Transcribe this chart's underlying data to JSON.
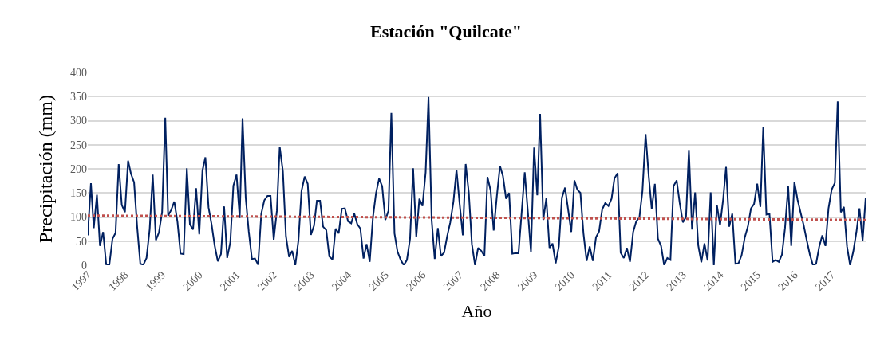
{
  "chart_data": {
    "type": "line",
    "title": "Estación \"Quilcate\"",
    "xlabel": "Año",
    "ylabel": "Precipitación (mm)",
    "xlim": [
      "1997-01",
      "2017-12"
    ],
    "xticks": [
      "1997",
      "1998",
      "1999",
      "2000",
      "2001",
      "2002",
      "2003",
      "2004",
      "2005",
      "2006",
      "2007",
      "2008",
      "2009",
      "2010",
      "2011",
      "2012",
      "2013",
      "2014",
      "2015",
      "2016",
      "2017"
    ],
    "ylim": [
      0,
      400
    ],
    "yticks": [
      0,
      50,
      100,
      150,
      200,
      250,
      300,
      350,
      400
    ],
    "grid": "y",
    "series": [
      {
        "color": "#002060",
        "line_style": "solid",
        "x": [
          "1997-01",
          "1997-02",
          "1997-03",
          "1997-04",
          "1997-05",
          "1997-06",
          "1997-07",
          "1997-08",
          "1997-09",
          "1997-10",
          "1997-11",
          "1997-12",
          "1998-01",
          "1998-02",
          "1998-03",
          "1998-04",
          "1998-05",
          "1998-06",
          "1998-07",
          "1998-08",
          "1998-09",
          "1998-10",
          "1998-11",
          "1998-12",
          "1999-01",
          "1999-02",
          "1999-03",
          "1999-04",
          "1999-05",
          "1999-06",
          "1999-07",
          "1999-08",
          "1999-09",
          "1999-10",
          "1999-11",
          "1999-12",
          "2000-01",
          "2000-02",
          "2000-03",
          "2000-04",
          "2000-05",
          "2000-06",
          "2000-07",
          "2000-08",
          "2000-09",
          "2000-10",
          "2000-11",
          "2000-12",
          "2001-01",
          "2001-02",
          "2001-03",
          "2001-04",
          "2001-05",
          "2001-06",
          "2001-07",
          "2001-08",
          "2001-09",
          "2001-10",
          "2001-11",
          "2001-12",
          "2002-01",
          "2002-02",
          "2002-03",
          "2002-04",
          "2002-05",
          "2002-06",
          "2002-07",
          "2002-08",
          "2002-09",
          "2002-10",
          "2002-11",
          "2002-12",
          "2003-01",
          "2003-02",
          "2003-03",
          "2003-04",
          "2003-05",
          "2003-06",
          "2003-07",
          "2003-08",
          "2003-09",
          "2003-10",
          "2003-11",
          "2003-12",
          "2004-01",
          "2004-02",
          "2004-03",
          "2004-04",
          "2004-05",
          "2004-06",
          "2004-07",
          "2004-08",
          "2004-09",
          "2004-10",
          "2004-11",
          "2004-12",
          "2005-01",
          "2005-02",
          "2005-03",
          "2005-04",
          "2005-05",
          "2005-06",
          "2005-07",
          "2005-08",
          "2005-09",
          "2005-10",
          "2005-11",
          "2005-12",
          "2006-01",
          "2006-02",
          "2006-03",
          "2006-04",
          "2006-05",
          "2006-06",
          "2006-07",
          "2006-08",
          "2006-09",
          "2006-10",
          "2006-11",
          "2006-12",
          "2007-01",
          "2007-02",
          "2007-03",
          "2007-04",
          "2007-05",
          "2007-06",
          "2007-07",
          "2007-08",
          "2007-09",
          "2007-10",
          "2007-11",
          "2007-12",
          "2008-01",
          "2008-02",
          "2008-03",
          "2008-04",
          "2008-05",
          "2008-06",
          "2008-07",
          "2008-08",
          "2008-09",
          "2008-10",
          "2008-11",
          "2008-12",
          "2009-01",
          "2009-02",
          "2009-03",
          "2009-04",
          "2009-05",
          "2009-06",
          "2009-07",
          "2009-08",
          "2009-09",
          "2009-10",
          "2009-11",
          "2009-12",
          "2010-01",
          "2010-02",
          "2010-03",
          "2010-04",
          "2010-05",
          "2010-06",
          "2010-07",
          "2010-08",
          "2010-09",
          "2010-10",
          "2010-11",
          "2010-12",
          "2011-01",
          "2011-02",
          "2011-03",
          "2011-04",
          "2011-05",
          "2011-06",
          "2011-07",
          "2011-08",
          "2011-09",
          "2011-10",
          "2011-11",
          "2011-12",
          "2012-01",
          "2012-02",
          "2012-03",
          "2012-04",
          "2012-05",
          "2012-06",
          "2012-07",
          "2012-08",
          "2012-09",
          "2012-10",
          "2012-11",
          "2012-12",
          "2013-01",
          "2013-02",
          "2013-03",
          "2013-04",
          "2013-05",
          "2013-06",
          "2013-07",
          "2013-08",
          "2013-09",
          "2013-10",
          "2013-11",
          "2013-12",
          "2014-01",
          "2014-02",
          "2014-03",
          "2014-04",
          "2014-05",
          "2014-06",
          "2014-07",
          "2014-08",
          "2014-09",
          "2014-10",
          "2014-11",
          "2014-12",
          "2015-01",
          "2015-02",
          "2015-03",
          "2015-04",
          "2015-05",
          "2015-06",
          "2015-07",
          "2015-08",
          "2015-09",
          "2015-10",
          "2015-11",
          "2015-12",
          "2016-01",
          "2016-02",
          "2016-03",
          "2016-04",
          "2016-05",
          "2016-06",
          "2016-07",
          "2016-08",
          "2016-09",
          "2016-10",
          "2016-11",
          "2016-12",
          "2017-01",
          "2017-02",
          "2017-03",
          "2017-04",
          "2017-05",
          "2017-06",
          "2017-07",
          "2017-08",
          "2017-09",
          "2017-10",
          "2017-11",
          "2017-12"
        ],
        "values": [
          62,
          170,
          77,
          146,
          40,
          69,
          2,
          1,
          55,
          67,
          210,
          125,
          110,
          217,
          190,
          172,
          80,
          3,
          1,
          15,
          75,
          188,
          52,
          68,
          110,
          306,
          103,
          115,
          132,
          90,
          24,
          23,
          201,
          85,
          74,
          160,
          64,
          196,
          224,
          120,
          85,
          40,
          8,
          23,
          122,
          15,
          48,
          165,
          188,
          98,
          305,
          140,
          70,
          13,
          14,
          1,
          107,
          135,
          144,
          144,
          53,
          113,
          246,
          195,
          60,
          17,
          30,
          0,
          52,
          154,
          184,
          169,
          63,
          82,
          134,
          134,
          80,
          73,
          18,
          12,
          76,
          66,
          117,
          118,
          91,
          87,
          108,
          85,
          76,
          14,
          44,
          7,
          99,
          149,
          180,
          164,
          94,
          113,
          316,
          66,
          28,
          11,
          0,
          11,
          55,
          201,
          58,
          138,
          123,
          193,
          349,
          94,
          13,
          77,
          19,
          26,
          61,
          89,
          132,
          198,
          127,
          62,
          210,
          150,
          44,
          0,
          36,
          30,
          19,
          183,
          155,
          72,
          143,
          206,
          185,
          138,
          150,
          24,
          25,
          25,
          110,
          193,
          110,
          28,
          244,
          145,
          314,
          94,
          139,
          36,
          45,
          4,
          39,
          140,
          161,
          116,
          69,
          176,
          157,
          150,
          66,
          9,
          39,
          9,
          58,
          70,
          116,
          129,
          123,
          138,
          180,
          191,
          26,
          15,
          36,
          7,
          69,
          91,
          99,
          154,
          272,
          184,
          117,
          169,
          55,
          40,
          0,
          15,
          11,
          164,
          176,
          129,
          89,
          100,
          239,
          74,
          151,
          41,
          6,
          45,
          10,
          151,
          0,
          125,
          83,
          138,
          204,
          80,
          107,
          3,
          4,
          21,
          58,
          80,
          118,
          127,
          169,
          121,
          286,
          105,
          107,
          7,
          11,
          7,
          22,
          77,
          164,
          40,
          173,
          136,
          110,
          83,
          52,
          22,
          0,
          3,
          39,
          62,
          40,
          118,
          157,
          171,
          340,
          110,
          121,
          39,
          0,
          28,
          69,
          118,
          51,
          140
        ]
      },
      {
        "color": "#c0504d",
        "line_style": "dotted",
        "x": [
          "1997-01",
          "2017-12"
        ],
        "values": [
          103,
          94
        ]
      }
    ]
  }
}
